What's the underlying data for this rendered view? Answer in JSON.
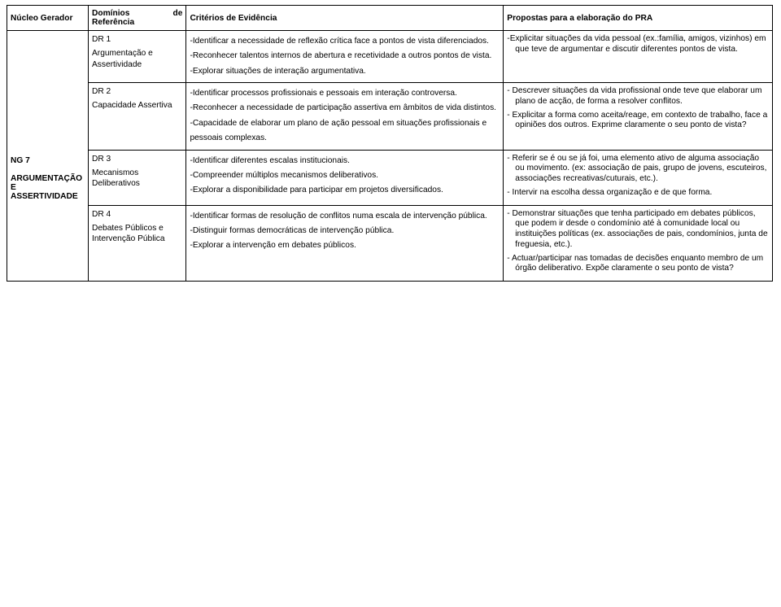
{
  "header": {
    "col1": "Núcleo Gerador",
    "col2_line1": "Domínios",
    "col2_de": "de",
    "col2_line2": "Referência",
    "col3": "Critérios de Evidência",
    "col4": "Propostas para a elaboração do PRA"
  },
  "ng": {
    "code": "NG 7",
    "title_line1": "ARGUMENTAÇÃO",
    "title_line2": "E",
    "title_line3": "ASSERTIVIDADE"
  },
  "rows": [
    {
      "dr_code": "DR 1",
      "dr_title": "Argumentação e Assertividade",
      "crit": [
        "-Identificar a necessidade de reflexão crítica face a pontos de vista diferenciados.",
        "-Reconhecer talentos internos de abertura e recetividade a outros pontos de vista.",
        "-Explorar situações de interação argumentativa."
      ],
      "prop": [
        "-Explicitar situações da vida pessoal (ex.:família, amigos, vizinhos) em que teve de argumentar e discutir diferentes pontos de vista."
      ]
    },
    {
      "dr_code": "DR 2",
      "dr_title": "Capacidade Assertiva",
      "crit": [
        "-Identificar processos profissionais e pessoais em interação controversa.",
        "-Reconhecer a necessidade de participação assertiva em âmbitos de vida distintos.",
        "-Capacidade de elaborar um plano de ação pessoal em situações profissionais e pessoais complexas."
      ],
      "prop": [
        "- Descrever situações da vida profissional onde teve que elaborar um plano de acção, de forma a resolver conflitos.",
        "- Explicitar a forma como aceita/reage, em contexto de trabalho, face a opiniões dos outros. Exprime claramente o seu ponto de vista?"
      ]
    },
    {
      "dr_code": "DR 3",
      "dr_title": "Mecanismos Deliberativos",
      "crit": [
        "-Identificar diferentes escalas institucionais.",
        "-Compreender múltiplos mecanismos deliberativos.",
        "-Explorar a disponibilidade para participar em projetos diversificados."
      ],
      "prop": [
        "- Referir se é ou se já foi, uma elemento ativo de alguma associação ou movimento. (ex: associação de pais, grupo de jovens, escuteiros, associações recreativas/cuturais, etc.).",
        "- Intervir na escolha dessa organização e de que forma."
      ]
    },
    {
      "dr_code": "DR 4",
      "dr_title": "Debates Públicos e Intervenção Pública",
      "crit": [
        "-Identificar formas de resolução de conflitos numa escala de intervenção pública.",
        "-Distinguir formas democráticas de intervenção pública.",
        "-Explorar a intervenção em debates públicos."
      ],
      "prop": [
        "- Demonstrar situações que tenha participado em debates públicos, que podem ir desde o condomínio até à comunidade local ou instituições políticas (ex. associações de pais, condomínios, junta de freguesia, etc.).",
        "- Actuar/participar nas tomadas de decisões enquanto membro de um órgão deliberativo. Expõe claramente o seu ponto de vista?"
      ]
    }
  ]
}
